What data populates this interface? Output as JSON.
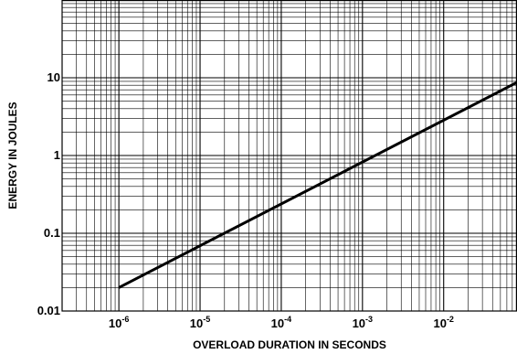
{
  "chart_data": {
    "type": "line",
    "title": "",
    "xlabel": "OVERLOAD DURATION IN SECONDS",
    "ylabel": "ENERGY IN JOULES",
    "x_scale": "log",
    "y_scale": "log",
    "xlim": [
      2e-07,
      0.08
    ],
    "ylim": [
      0.01,
      100
    ],
    "x_ticks": [
      {
        "value": 1e-06,
        "base": "10",
        "exp": "-6"
      },
      {
        "value": 1e-05,
        "base": "10",
        "exp": "-5"
      },
      {
        "value": 0.0001,
        "base": "10",
        "exp": "-4"
      },
      {
        "value": 0.001,
        "base": "10",
        "exp": "-3"
      },
      {
        "value": 0.01,
        "base": "10",
        "exp": "-2"
      }
    ],
    "y_ticks": [
      {
        "value": 0.01,
        "label": "0.01"
      },
      {
        "value": 0.1,
        "label": "0.1"
      },
      {
        "value": 1,
        "label": "1"
      },
      {
        "value": 10,
        "label": "10"
      }
    ],
    "grid": true,
    "series": [
      {
        "color": "#000000",
        "x": [
          1e-06,
          0.08
        ],
        "y": [
          0.02,
          8.7
        ]
      }
    ]
  }
}
